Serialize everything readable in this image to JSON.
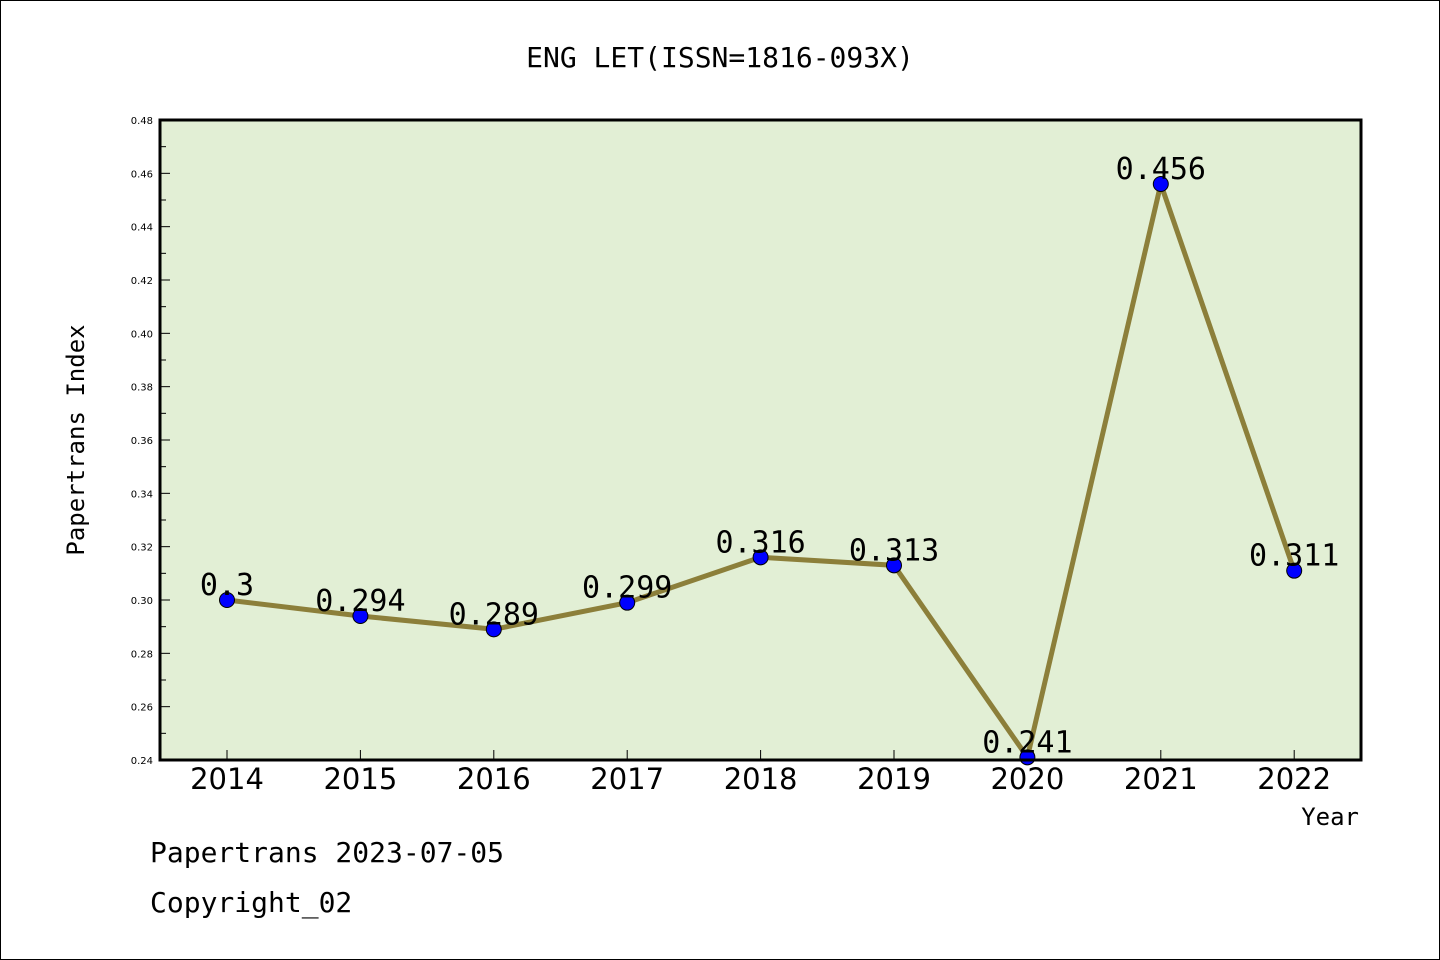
{
  "chart_data": {
    "type": "line",
    "title": "ENG LET(ISSN=1816-093X)",
    "xlabel": "Year",
    "ylabel": "Papertrans Index",
    "categories": [
      "2014",
      "2015",
      "2016",
      "2017",
      "2018",
      "2019",
      "2020",
      "2021",
      "2022"
    ],
    "values": [
      0.3,
      0.294,
      0.289,
      0.299,
      0.316,
      0.313,
      0.241,
      0.456,
      0.311
    ],
    "data_labels": [
      "0.3",
      "0.294",
      "0.289",
      "0.299",
      "0.316",
      "0.313",
      "0.241",
      "0.456",
      "0.311"
    ],
    "ylim": [
      0.24,
      0.48
    ],
    "y_ticks": [
      "0.24",
      "0.26",
      "0.28",
      "0.30",
      "0.32",
      "0.34",
      "0.36",
      "0.38",
      "0.40",
      "0.42",
      "0.44",
      "0.46",
      "0.48"
    ],
    "y_minor_step": 0.01,
    "grid": false,
    "legend": "none",
    "colors": {
      "plot_background": "#e2efd5",
      "line": "#8c7f3a",
      "marker": "#0000ff",
      "axes": "#000000"
    }
  },
  "footer": {
    "date_line": "Papertrans 2023-07-05",
    "copyright_line": "Copyright_02"
  }
}
